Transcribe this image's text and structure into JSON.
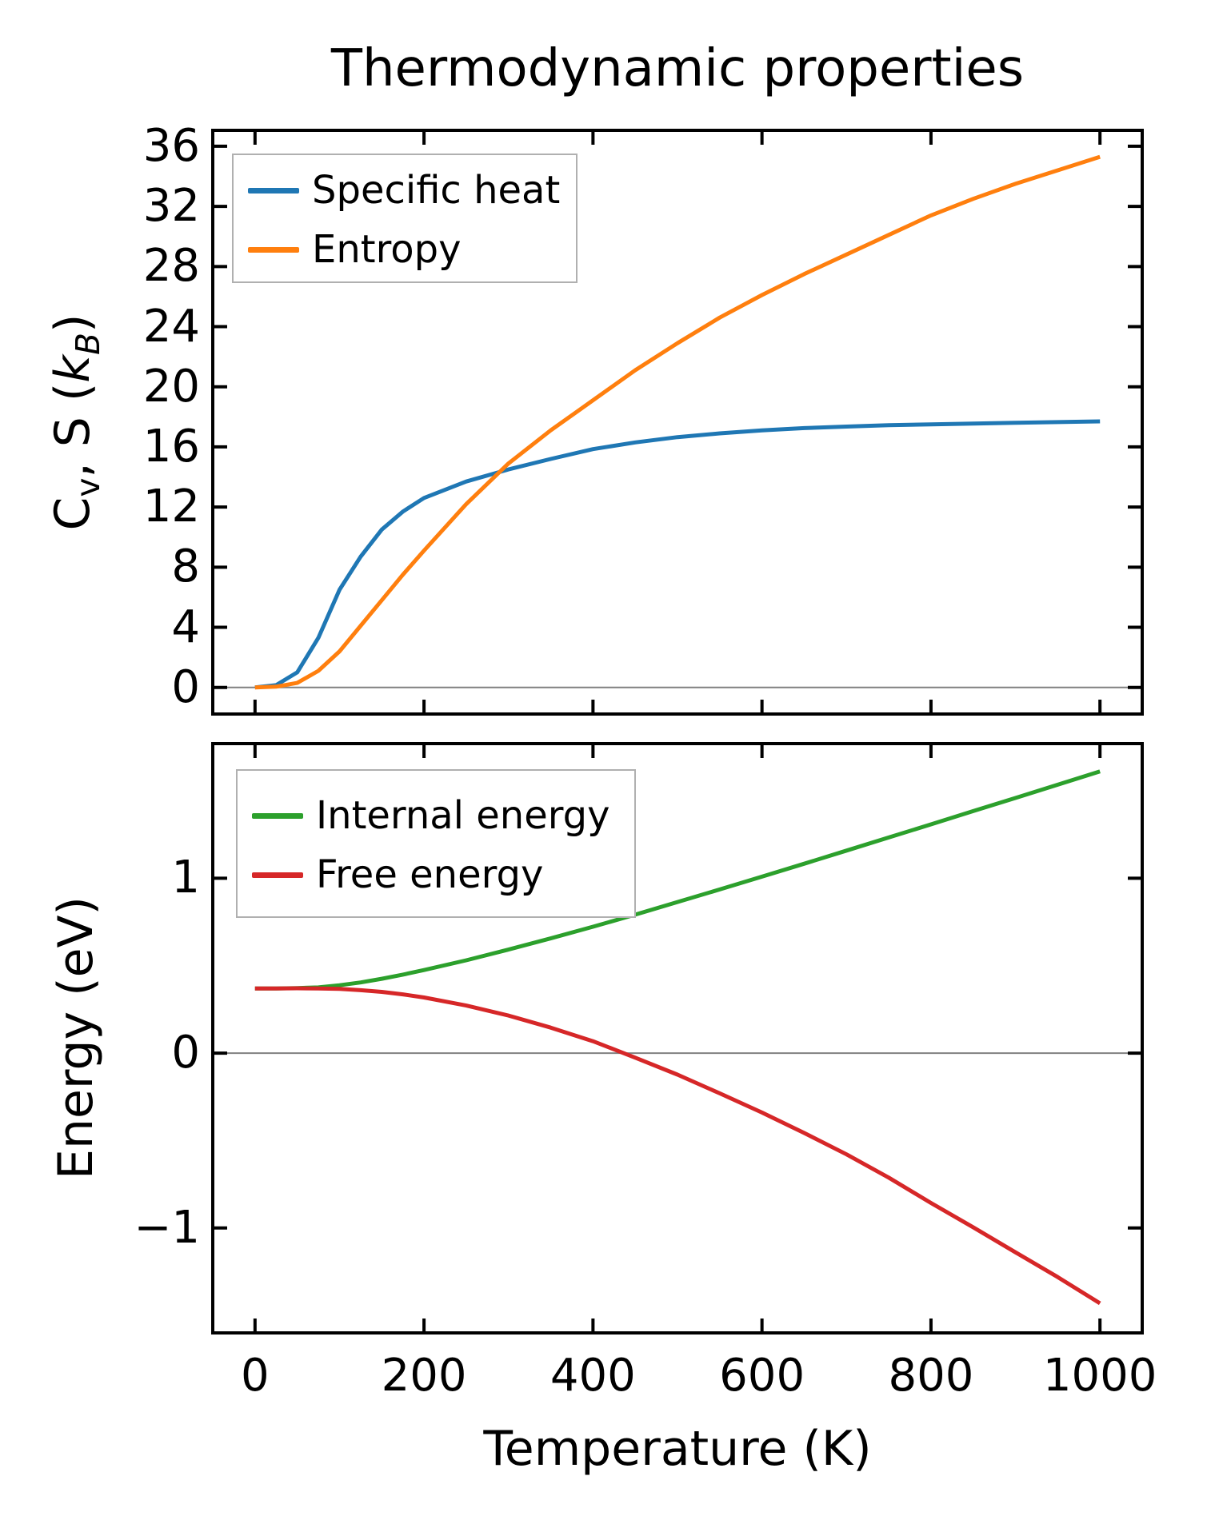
{
  "figure": {
    "background": "#ffffff",
    "zero_line_color": "#808080",
    "spine_color": "#000000",
    "legend_border_color": "#b0b0b0"
  },
  "chart_data": [
    {
      "type": "line",
      "title": "Thermodynamic properties",
      "xlabel": "",
      "ylabel": "Cv, S (kB)",
      "ylabel_parts": [
        {
          "t": "C"
        },
        {
          "t": "v",
          "sub": true
        },
        {
          "t": ", S ("
        },
        {
          "t": "k",
          "italic": true
        },
        {
          "t": "B",
          "sub": true,
          "italic": true
        },
        {
          "t": ")"
        }
      ],
      "xlim": [
        -50,
        1050
      ],
      "ylim": [
        -1.77,
        37.06
      ],
      "x_ticks": [
        0,
        200,
        400,
        600,
        800,
        1000
      ],
      "x_tick_labels_visible": false,
      "y_ticks": [
        0,
        4,
        8,
        12,
        16,
        20,
        24,
        28,
        32,
        36
      ],
      "zero_line": true,
      "legend_position": "upper left",
      "x": [
        0,
        25,
        50,
        75,
        100,
        125,
        150,
        175,
        200,
        250,
        300,
        350,
        400,
        450,
        500,
        550,
        600,
        650,
        700,
        750,
        800,
        850,
        900,
        950,
        1000
      ],
      "series": [
        {
          "name": "Specific heat",
          "color": "#1f77b4",
          "values": [
            0,
            0.15,
            1.0,
            3.3,
            6.5,
            8.7,
            10.5,
            11.7,
            12.6,
            13.7,
            14.5,
            15.2,
            15.85,
            16.3,
            16.65,
            16.9,
            17.1,
            17.25,
            17.35,
            17.45,
            17.5,
            17.55,
            17.6,
            17.65,
            17.7
          ]
        },
        {
          "name": "Entropy",
          "color": "#ff7f0e",
          "values": [
            0,
            0.05,
            0.3,
            1.1,
            2.4,
            4.1,
            5.8,
            7.5,
            9.1,
            12.2,
            14.9,
            17.1,
            19.1,
            21.1,
            22.9,
            24.6,
            26.1,
            27.5,
            28.8,
            30.1,
            31.4,
            32.5,
            33.5,
            34.4,
            35.3
          ]
        }
      ]
    },
    {
      "type": "line",
      "title": "",
      "xlabel": "Temperature (K)",
      "ylabel": "Energy (eV)",
      "ylabel_parts": [
        {
          "t": "Energy (eV)"
        }
      ],
      "xlim": [
        -50,
        1050
      ],
      "ylim": [
        -1.6,
        1.77
      ],
      "x_ticks": [
        0,
        200,
        400,
        600,
        800,
        1000
      ],
      "x_tick_labels_visible": true,
      "y_ticks": [
        -1,
        0,
        1
      ],
      "zero_line": true,
      "legend_position": "upper left",
      "x": [
        0,
        25,
        50,
        75,
        100,
        125,
        150,
        175,
        200,
        250,
        300,
        350,
        400,
        450,
        500,
        550,
        600,
        650,
        700,
        750,
        800,
        850,
        900,
        950,
        1000
      ],
      "series": [
        {
          "name": "Internal energy",
          "color": "#2ca02c",
          "values": [
            0.37,
            0.37,
            0.372,
            0.376,
            0.388,
            0.404,
            0.425,
            0.449,
            0.475,
            0.531,
            0.592,
            0.656,
            0.723,
            0.792,
            0.864,
            0.936,
            1.009,
            1.083,
            1.158,
            1.233,
            1.308,
            1.384,
            1.459,
            1.535,
            1.611
          ]
        },
        {
          "name": "Free energy",
          "color": "#d62728",
          "values": [
            0.37,
            0.37,
            0.371,
            0.37,
            0.367,
            0.36,
            0.35,
            0.336,
            0.318,
            0.272,
            0.215,
            0.146,
            0.068,
            -0.026,
            -0.123,
            -0.23,
            -0.34,
            -0.457,
            -0.579,
            -0.712,
            -0.857,
            -0.996,
            -1.139,
            -1.281,
            -1.431
          ]
        }
      ]
    }
  ]
}
